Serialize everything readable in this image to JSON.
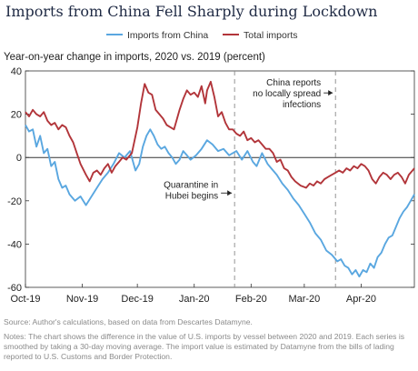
{
  "title": "Imports from China Fell Sharply during Lockdown",
  "subtitle": "Year-on-year change in imports, 2020 vs. 2019 (percent)",
  "source": "Source: Author's calculations, based on data from Descartes Datamyne.",
  "notes": "Notes: The chart shows the difference in the value of U.S. imports by vessel between 2020 and 2019. Each series is smoothed by taking a 30-day moving average. The import value is estimated by Datamyne from the bills of lading reported to U.S. Customs and Border Protection.",
  "chart_data": {
    "type": "line",
    "x_axis": {
      "start": "2019-10-01",
      "end": "2020-04-30",
      "ticks": [
        {
          "label": "Oct-19",
          "date": "2019-10-01"
        },
        {
          "label": "Nov-19",
          "date": "2019-11-01"
        },
        {
          "label": "Dec-19",
          "date": "2019-12-01"
        },
        {
          "label": "Jan-20",
          "date": "2020-01-01"
        },
        {
          "label": "Feb-20",
          "date": "2020-02-01"
        },
        {
          "label": "Mar-20",
          "date": "2020-03-01"
        },
        {
          "label": "Apr-20",
          "date": "2020-04-01"
        }
      ]
    },
    "y_axis": {
      "min": -60,
      "max": 40,
      "ticks": [
        -60,
        -40,
        -20,
        0,
        20,
        40
      ]
    },
    "zero_line": true,
    "grid": false,
    "legend_position": "top-center",
    "series": [
      {
        "name": "Imports from China",
        "color": "#5aa7e0",
        "points": [
          [
            "2019-10-01",
            15
          ],
          [
            "2019-10-03",
            12
          ],
          [
            "2019-10-05",
            13
          ],
          [
            "2019-10-07",
            5
          ],
          [
            "2019-10-09",
            10
          ],
          [
            "2019-10-11",
            2
          ],
          [
            "2019-10-13",
            4
          ],
          [
            "2019-10-15",
            -4
          ],
          [
            "2019-10-17",
            -2
          ],
          [
            "2019-10-19",
            -10
          ],
          [
            "2019-10-21",
            -14
          ],
          [
            "2019-10-23",
            -13
          ],
          [
            "2019-10-25",
            -17
          ],
          [
            "2019-10-28",
            -20
          ],
          [
            "2019-10-31",
            -18
          ],
          [
            "2019-11-03",
            -22
          ],
          [
            "2019-11-06",
            -18
          ],
          [
            "2019-11-09",
            -14
          ],
          [
            "2019-11-12",
            -10
          ],
          [
            "2019-11-15",
            -7
          ],
          [
            "2019-11-18",
            -3
          ],
          [
            "2019-11-21",
            2
          ],
          [
            "2019-11-24",
            0
          ],
          [
            "2019-11-27",
            3
          ],
          [
            "2019-11-30",
            -6
          ],
          [
            "2019-12-02",
            -3
          ],
          [
            "2019-12-04",
            5
          ],
          [
            "2019-12-06",
            10
          ],
          [
            "2019-12-08",
            13
          ],
          [
            "2019-12-10",
            10
          ],
          [
            "2019-12-12",
            6
          ],
          [
            "2019-12-14",
            4
          ],
          [
            "2019-12-16",
            5
          ],
          [
            "2019-12-18",
            2
          ],
          [
            "2019-12-20",
            0
          ],
          [
            "2019-12-22",
            -3
          ],
          [
            "2019-12-24",
            -1
          ],
          [
            "2019-12-26",
            3
          ],
          [
            "2019-12-28",
            1
          ],
          [
            "2019-12-30",
            -1
          ],
          [
            "2020-01-02",
            1
          ],
          [
            "2020-01-05",
            4
          ],
          [
            "2020-01-08",
            8
          ],
          [
            "2020-01-11",
            6
          ],
          [
            "2020-01-14",
            3
          ],
          [
            "2020-01-17",
            4
          ],
          [
            "2020-01-20",
            1
          ],
          [
            "2020-01-22",
            2
          ],
          [
            "2020-01-24",
            3
          ],
          [
            "2020-01-27",
            -1
          ],
          [
            "2020-01-30",
            3
          ],
          [
            "2020-02-02",
            -2
          ],
          [
            "2020-02-04",
            -4
          ],
          [
            "2020-02-07",
            2
          ],
          [
            "2020-02-10",
            -3
          ],
          [
            "2020-02-12",
            -5
          ],
          [
            "2020-02-15",
            -8
          ],
          [
            "2020-02-18",
            -12
          ],
          [
            "2020-02-21",
            -15
          ],
          [
            "2020-02-24",
            -19
          ],
          [
            "2020-02-27",
            -22
          ],
          [
            "2020-03-01",
            -26
          ],
          [
            "2020-03-04",
            -30
          ],
          [
            "2020-03-07",
            -35
          ],
          [
            "2020-03-10",
            -38
          ],
          [
            "2020-03-13",
            -43
          ],
          [
            "2020-03-16",
            -45
          ],
          [
            "2020-03-19",
            -48
          ],
          [
            "2020-03-21",
            -47
          ],
          [
            "2020-03-23",
            -50
          ],
          [
            "2020-03-25",
            -51
          ],
          [
            "2020-03-27",
            -54
          ],
          [
            "2020-03-29",
            -52
          ],
          [
            "2020-03-31",
            -55
          ],
          [
            "2020-04-02",
            -52
          ],
          [
            "2020-04-04",
            -53
          ],
          [
            "2020-04-06",
            -49
          ],
          [
            "2020-04-08",
            -51
          ],
          [
            "2020-04-10",
            -46
          ],
          [
            "2020-04-12",
            -44
          ],
          [
            "2020-04-14",
            -40
          ],
          [
            "2020-04-16",
            -37
          ],
          [
            "2020-04-18",
            -36
          ],
          [
            "2020-04-20",
            -32
          ],
          [
            "2020-04-22",
            -28
          ],
          [
            "2020-04-24",
            -25
          ],
          [
            "2020-04-26",
            -23
          ],
          [
            "2020-04-28",
            -20
          ],
          [
            "2020-04-30",
            -17
          ]
        ]
      },
      {
        "name": "Total imports",
        "color": "#b2353a",
        "points": [
          [
            "2019-10-01",
            21
          ],
          [
            "2019-10-03",
            19
          ],
          [
            "2019-10-05",
            22
          ],
          [
            "2019-10-07",
            20
          ],
          [
            "2019-10-09",
            19
          ],
          [
            "2019-10-11",
            21
          ],
          [
            "2019-10-13",
            17
          ],
          [
            "2019-10-15",
            15
          ],
          [
            "2019-10-17",
            16
          ],
          [
            "2019-10-19",
            13
          ],
          [
            "2019-10-21",
            15
          ],
          [
            "2019-10-23",
            14
          ],
          [
            "2019-10-25",
            10
          ],
          [
            "2019-10-27",
            7
          ],
          [
            "2019-10-29",
            2
          ],
          [
            "2019-10-31",
            -3
          ],
          [
            "2019-11-03",
            -8
          ],
          [
            "2019-11-05",
            -11
          ],
          [
            "2019-11-07",
            -7
          ],
          [
            "2019-11-09",
            -6
          ],
          [
            "2019-11-11",
            -8
          ],
          [
            "2019-11-13",
            -5
          ],
          [
            "2019-11-15",
            -3
          ],
          [
            "2019-11-17",
            -7
          ],
          [
            "2019-11-19",
            -4
          ],
          [
            "2019-11-21",
            -2
          ],
          [
            "2019-11-23",
            0
          ],
          [
            "2019-11-25",
            -1
          ],
          [
            "2019-11-28",
            2
          ],
          [
            "2019-12-01",
            14
          ],
          [
            "2019-12-03",
            25
          ],
          [
            "2019-12-05",
            34
          ],
          [
            "2019-12-07",
            30
          ],
          [
            "2019-12-09",
            29
          ],
          [
            "2019-12-11",
            22
          ],
          [
            "2019-12-13",
            20
          ],
          [
            "2019-12-15",
            18
          ],
          [
            "2019-12-17",
            15
          ],
          [
            "2019-12-19",
            14
          ],
          [
            "2019-12-21",
            13
          ],
          [
            "2019-12-24",
            22
          ],
          [
            "2019-12-26",
            27
          ],
          [
            "2019-12-28",
            31
          ],
          [
            "2019-12-30",
            29
          ],
          [
            "2020-01-01",
            30
          ],
          [
            "2020-01-03",
            28
          ],
          [
            "2020-01-05",
            33
          ],
          [
            "2020-01-07",
            25
          ],
          [
            "2020-01-08",
            31
          ],
          [
            "2020-01-10",
            35
          ],
          [
            "2020-01-12",
            28
          ],
          [
            "2020-01-14",
            19
          ],
          [
            "2020-01-16",
            21
          ],
          [
            "2020-01-18",
            16
          ],
          [
            "2020-01-20",
            13
          ],
          [
            "2020-01-22",
            13
          ],
          [
            "2020-01-24",
            11
          ],
          [
            "2020-01-26",
            10
          ],
          [
            "2020-01-28",
            12
          ],
          [
            "2020-01-30",
            8
          ],
          [
            "2020-02-01",
            9
          ],
          [
            "2020-02-03",
            7
          ],
          [
            "2020-02-05",
            8
          ],
          [
            "2020-02-07",
            6
          ],
          [
            "2020-02-09",
            4
          ],
          [
            "2020-02-11",
            4
          ],
          [
            "2020-02-13",
            2
          ],
          [
            "2020-02-15",
            -2
          ],
          [
            "2020-02-17",
            -1
          ],
          [
            "2020-02-19",
            -5
          ],
          [
            "2020-02-21",
            -6
          ],
          [
            "2020-02-23",
            -9
          ],
          [
            "2020-02-25",
            -11
          ],
          [
            "2020-02-28",
            -13
          ],
          [
            "2020-03-02",
            -14
          ],
          [
            "2020-03-04",
            -12
          ],
          [
            "2020-03-06",
            -13
          ],
          [
            "2020-03-08",
            -11
          ],
          [
            "2020-03-10",
            -12
          ],
          [
            "2020-03-12",
            -10
          ],
          [
            "2020-03-14",
            -9
          ],
          [
            "2020-03-16",
            -8
          ],
          [
            "2020-03-18",
            -7
          ],
          [
            "2020-03-20",
            -6
          ],
          [
            "2020-03-22",
            -7
          ],
          [
            "2020-03-24",
            -5
          ],
          [
            "2020-03-26",
            -6
          ],
          [
            "2020-03-28",
            -4
          ],
          [
            "2020-03-30",
            -5
          ],
          [
            "2020-04-01",
            -3
          ],
          [
            "2020-04-03",
            -4
          ],
          [
            "2020-04-05",
            -6
          ],
          [
            "2020-04-07",
            -10
          ],
          [
            "2020-04-09",
            -12
          ],
          [
            "2020-04-11",
            -9
          ],
          [
            "2020-04-13",
            -7
          ],
          [
            "2020-04-15",
            -8
          ],
          [
            "2020-04-17",
            -10
          ],
          [
            "2020-04-19",
            -8
          ],
          [
            "2020-04-21",
            -7
          ],
          [
            "2020-04-23",
            -9
          ],
          [
            "2020-04-25",
            -12
          ],
          [
            "2020-04-27",
            -8
          ],
          [
            "2020-04-30",
            -5
          ]
        ]
      }
    ],
    "events": [
      {
        "date": "2020-01-23",
        "label_lines": [
          "Quarantine in",
          "Hubei begins"
        ],
        "label_y": -16,
        "arrow": "right"
      },
      {
        "date": "2020-03-18",
        "label_lines": [
          "China reports",
          "no locally spread",
          "infections"
        ],
        "label_y": 29,
        "arrow": "right"
      }
    ]
  }
}
